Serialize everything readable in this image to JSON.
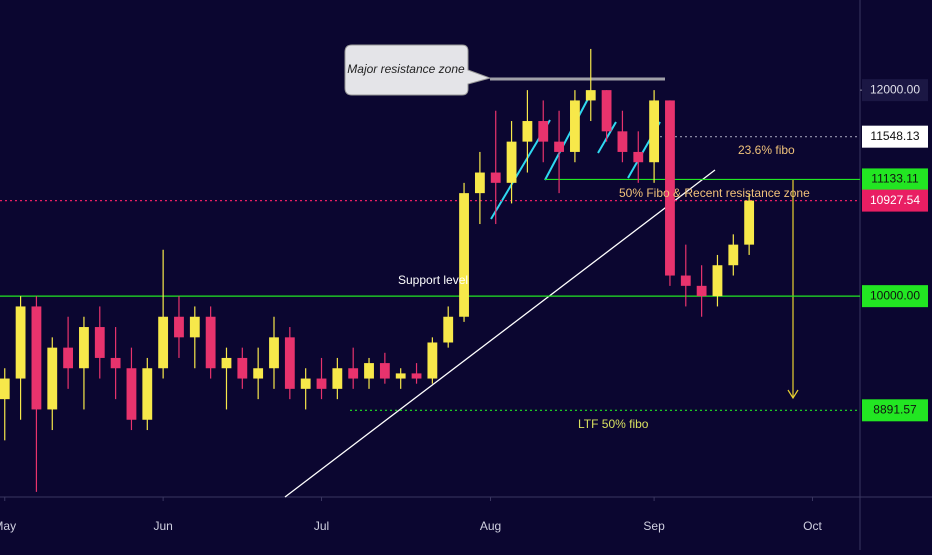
{
  "chart_data": {
    "type": "candlestick",
    "xlim": [
      -0.3,
      54
    ],
    "xticks": [
      {
        "value": 0,
        "label": "May"
      },
      {
        "value": 10,
        "label": "Jun"
      },
      {
        "value": 20,
        "label": "Jul"
      },
      {
        "value": 30.67,
        "label": "Aug"
      },
      {
        "value": 41,
        "label": "Sep"
      },
      {
        "value": 51,
        "label": "Oct"
      }
    ],
    "ylim": [
      8050,
      12875
    ],
    "yticks": [
      {
        "value": 12000,
        "label": "12000.00"
      }
    ],
    "open": [
      9000,
      9200,
      9900,
      8900,
      9500,
      9300,
      9700,
      9400,
      9300,
      8800,
      9300,
      9800,
      9600,
      9800,
      9300,
      9400,
      9200,
      9300,
      9600,
      9100,
      9200,
      9100,
      9300,
      9200,
      9350,
      9200,
      9250,
      9200,
      9550,
      9800,
      11000,
      11200,
      11100,
      11500,
      11700,
      11500,
      11400,
      11900,
      12000,
      11600,
      11400,
      11300,
      11900,
      10200,
      10100,
      10000,
      10300,
      10500
    ],
    "high": [
      9300,
      10000,
      10000,
      9600,
      9800,
      9800,
      9900,
      9700,
      9500,
      9400,
      10450,
      10000,
      9900,
      9900,
      9500,
      9500,
      9500,
      9800,
      9700,
      9300,
      9400,
      9400,
      9500,
      9400,
      9450,
      9300,
      9350,
      9600,
      9900,
      11100,
      11400,
      11800,
      11700,
      12000,
      11900,
      11800,
      12000,
      12400,
      12000,
      11800,
      11600,
      12000,
      11900,
      10500,
      10300,
      10400,
      10600,
      11000
    ],
    "low": [
      8600,
      8800,
      8100,
      8700,
      9100,
      8900,
      9200,
      9000,
      8700,
      8700,
      9200,
      9400,
      9300,
      9200,
      8900,
      9100,
      9000,
      9100,
      9000,
      8900,
      9000,
      9000,
      9100,
      9100,
      9150,
      9100,
      9150,
      9150,
      9500,
      9750,
      10700,
      10700,
      10900,
      11200,
      11300,
      11000,
      11300,
      11700,
      11500,
      11300,
      11100,
      11100,
      10100,
      9900,
      9800,
      9900,
      10200,
      10400
    ],
    "close": [
      9200,
      9900,
      8900,
      9500,
      9300,
      9700,
      9400,
      9300,
      8800,
      9300,
      9800,
      9600,
      9800,
      9300,
      9400,
      9200,
      9300,
      9600,
      9100,
      9200,
      9100,
      9300,
      9200,
      9350,
      9200,
      9250,
      9200,
      9550,
      9800,
      11000,
      11200,
      11100,
      11500,
      11700,
      11500,
      11400,
      11900,
      12000,
      11600,
      11400,
      11300,
      11900,
      10200,
      10100,
      10000,
      10300,
      10500,
      10927.54
    ],
    "up_color": "#f7e84a",
    "down_color": "#e8336d",
    "levels": [
      {
        "value": 11548.13,
        "label": "11548.13",
        "color": "#ffffff"
      },
      {
        "value": 11133.11,
        "label": "11133.11",
        "color": "#22e622"
      },
      {
        "value": 10927.54,
        "label": "10927.54",
        "color": "#e91e63"
      },
      {
        "value": 10000,
        "label": "10000.00",
        "color": "#22e622"
      },
      {
        "value": 8891.57,
        "label": "8891.57",
        "color": "#22e622"
      }
    ],
    "annotations": [
      "Major resistance zone",
      "Support level",
      "23.6% fibo",
      "50% Fibo & Recent resistance zone",
      "LTF 50% fibo"
    ]
  }
}
